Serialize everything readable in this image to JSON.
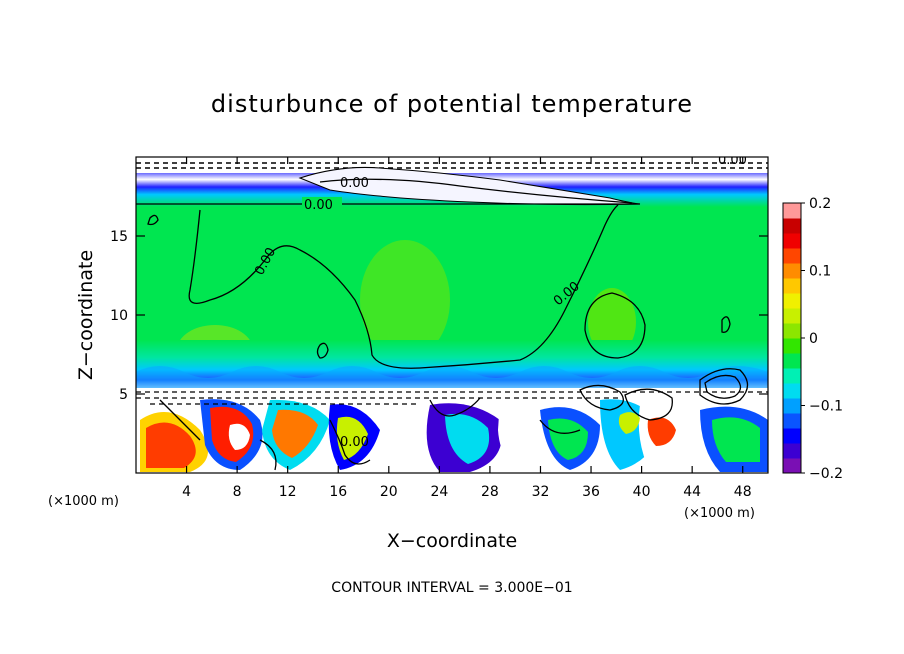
{
  "chart_data": {
    "type": "heatmap",
    "title": "disturbunce of potential temperature",
    "xlabel": "X−coordinate",
    "ylabel": "Z−coordinate",
    "x_unit_left": "(×1000 m)",
    "x_unit_right": "(×1000 m)",
    "xlim": [
      0,
      50
    ],
    "ylim": [
      0,
      20
    ],
    "x_ticks": [
      "4",
      "8",
      "12",
      "16",
      "20",
      "24",
      "28",
      "32",
      "36",
      "40",
      "44",
      "48"
    ],
    "y_ticks": [
      "5",
      "10",
      "15"
    ],
    "footer": "CONTOUR INTERVAL = 3.000E−01",
    "contour_labels": [
      "0.00",
      "0.00",
      "0.00",
      "0.00",
      "0.00",
      "0.00"
    ],
    "colorbar": {
      "min": -0.2,
      "max": 0.2,
      "tick_labels": [
        "0.2",
        "0.1",
        "0",
        "−0.1",
        "−0.2"
      ],
      "tick_values": [
        0.2,
        0.1,
        0,
        -0.1,
        -0.2
      ],
      "colors": [
        "#7a0fb4",
        "#3c00d2",
        "#0000ff",
        "#0a55ff",
        "#00a0ff",
        "#00dcf0",
        "#00f0b4",
        "#00e650",
        "#32e600",
        "#8ce600",
        "#c8f000",
        "#f0f000",
        "#ffc800",
        "#ff8c00",
        "#ff4600",
        "#f00000",
        "#c80000",
        "#ff9999"
      ]
    }
  }
}
